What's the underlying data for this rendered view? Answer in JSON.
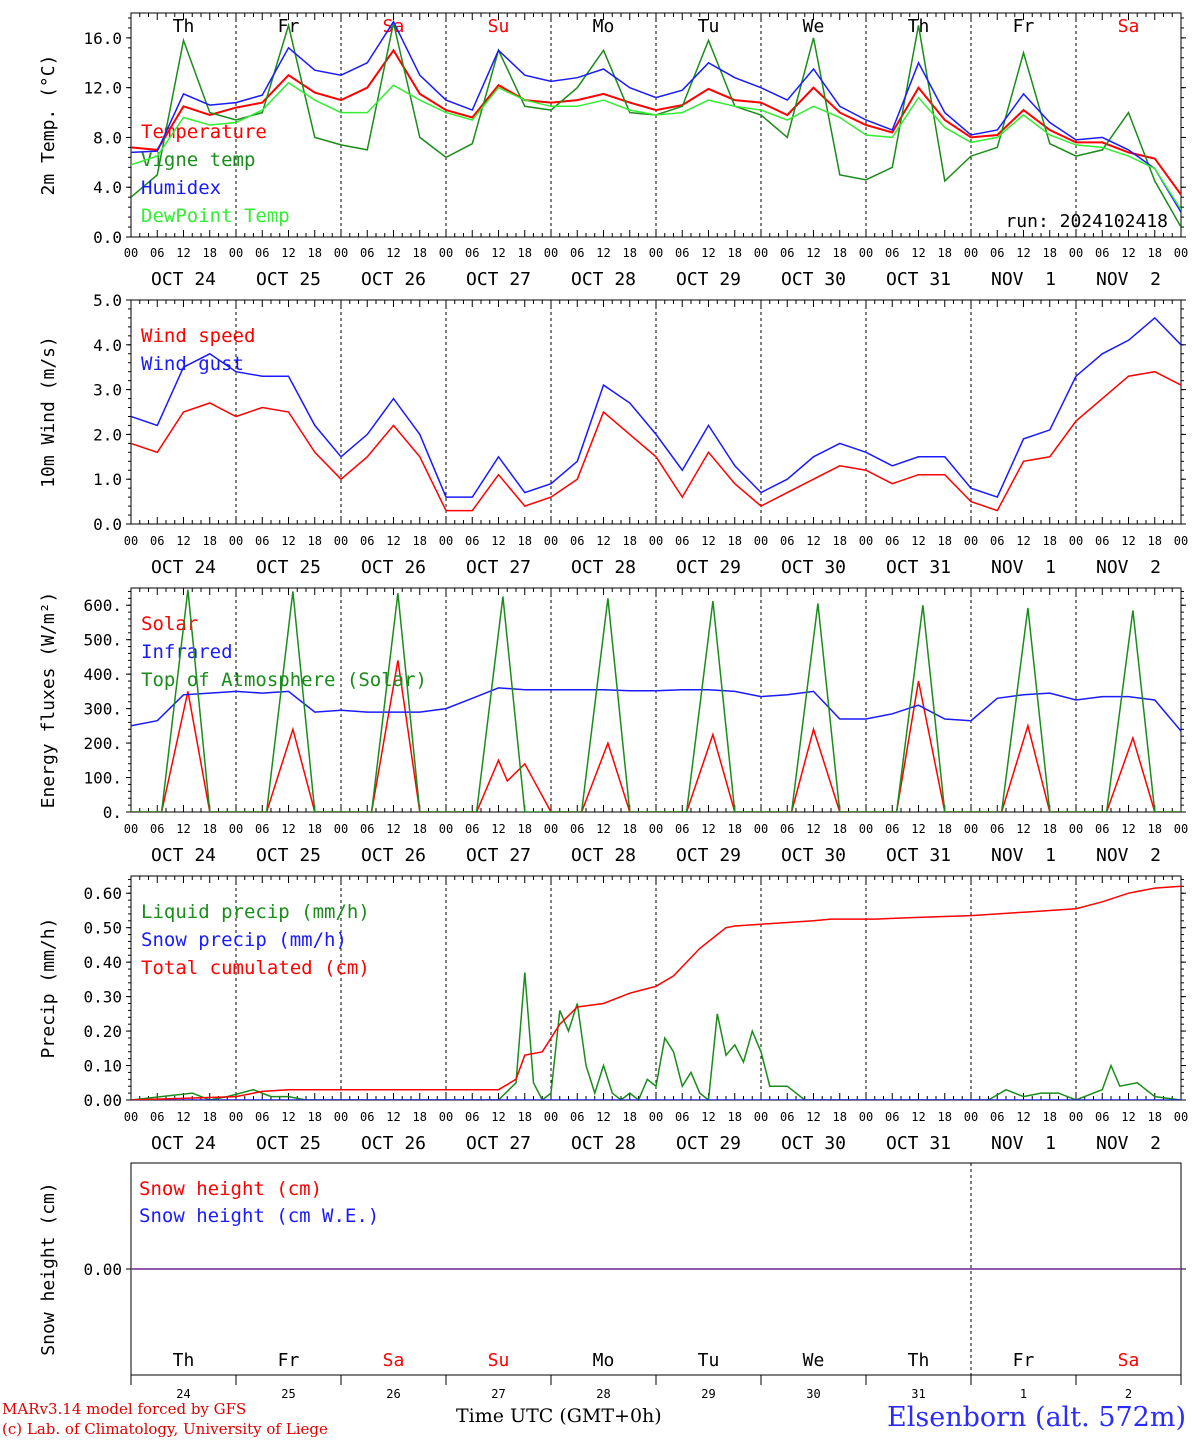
{
  "footer": {
    "model": "MARv3.14 model forced by GFS",
    "credit": "(c) Lab. of Climatology, University of Liege",
    "xtitle": "Time UTC (GMT+0h)",
    "station": "Elsenborn (alt. 572m)"
  },
  "weekdays": [
    "Th",
    "Fr",
    "Sa",
    "Su",
    "Mo",
    "Tu",
    "We",
    "Th",
    "Fr",
    "Sa"
  ],
  "weekend_days": [
    "Sa",
    "Su"
  ],
  "dates": [
    "OCT 24",
    "OCT 25",
    "OCT 26",
    "OCT 27",
    "OCT 28",
    "OCT 29",
    "OCT 30",
    "OCT 31",
    "NOV  1",
    "NOV  2"
  ],
  "bottom_day_numbers": [
    "24",
    "25",
    "26",
    "27",
    "28",
    "29",
    "30",
    "31",
    "1",
    "2"
  ],
  "hour_labels": [
    "00",
    "06",
    "12",
    "18"
  ],
  "colors": {
    "red": "#ff0000",
    "green": "#1a8c1a",
    "blue": "#1a1aff",
    "lightgreen": "#33ee33",
    "purple": "#8040a0"
  },
  "chart_data": [
    {
      "type": "line",
      "ylabel": "2m Temp. (°C)",
      "ylim": [
        0,
        18
      ],
      "yticks": [
        "0.0",
        "4.0",
        "8.0",
        "12.0",
        "16.0"
      ],
      "annotation": "run: 2024102418",
      "x_units": "hours since 2024-10-24 00 UTC (tick labels printed as 00 06 12 18 per day)",
      "x": [
        0,
        6,
        12,
        18,
        24,
        30,
        36,
        42,
        48,
        54,
        60,
        66,
        72,
        78,
        84,
        90,
        96,
        102,
        108,
        114,
        120,
        126,
        132,
        138,
        144,
        150,
        156,
        162,
        168,
        174,
        180,
        186,
        192,
        198,
        204,
        210,
        216,
        222,
        228,
        234,
        240
      ],
      "series": [
        {
          "name": "Temperature",
          "color": "red",
          "values": [
            7.2,
            7.0,
            10.5,
            9.8,
            10.4,
            10.8,
            13.0,
            11.6,
            11.0,
            12.0,
            15.0,
            11.5,
            10.2,
            9.6,
            12.2,
            11.0,
            10.8,
            11.0,
            11.5,
            10.8,
            10.2,
            10.6,
            11.9,
            11.0,
            10.8,
            9.8,
            12.0,
            10.0,
            9.0,
            8.4,
            12.0,
            9.4,
            8.0,
            8.2,
            10.2,
            8.6,
            7.6,
            7.6,
            6.8,
            6.3,
            3.4
          ]
        },
        {
          "name": "Vigne temp",
          "color": "green",
          "values": [
            3.2,
            5.0,
            15.8,
            10.0,
            9.4,
            10.0,
            17.0,
            8.0,
            7.4,
            7.0,
            17.2,
            8.0,
            6.4,
            7.5,
            15.0,
            10.5,
            10.2,
            12.0,
            15.0,
            10.0,
            9.8,
            10.5,
            15.8,
            10.5,
            9.8,
            8.0,
            16.0,
            5.0,
            4.6,
            5.6,
            17.0,
            4.5,
            6.5,
            7.2,
            14.8,
            7.5,
            6.5,
            7.0,
            10.0,
            4.5,
            0.8
          ]
        },
        {
          "name": "Humidex",
          "color": "blue",
          "values": [
            6.8,
            6.9,
            11.5,
            10.6,
            10.8,
            11.4,
            15.2,
            13.4,
            13.0,
            14.0,
            17.3,
            13.0,
            11.0,
            10.2,
            15.0,
            13.0,
            12.5,
            12.8,
            13.5,
            12.0,
            11.2,
            11.8,
            14.0,
            12.8,
            12.0,
            11.0,
            13.5,
            10.5,
            9.4,
            8.6,
            14.0,
            10.0,
            8.2,
            8.6,
            11.5,
            9.2,
            7.8,
            8.0,
            7.0,
            5.5,
            2.0
          ]
        },
        {
          "name": "DewPoint Temp",
          "color": "lightgreen",
          "values": [
            5.8,
            6.5,
            9.6,
            9.0,
            9.2,
            10.2,
            12.4,
            11.0,
            10.0,
            10.0,
            12.2,
            11.0,
            10.0,
            9.4,
            12.0,
            11.0,
            10.5,
            10.5,
            11.0,
            10.2,
            9.8,
            10.0,
            11.0,
            10.5,
            10.2,
            9.4,
            10.5,
            9.6,
            8.2,
            8.0,
            11.2,
            8.8,
            7.6,
            8.0,
            9.8,
            8.2,
            7.4,
            7.2,
            6.5,
            5.5,
            2.2
          ]
        }
      ]
    },
    {
      "type": "line",
      "ylabel": "10m Wind (m/s)",
      "ylim": [
        0,
        5
      ],
      "yticks": [
        "0.0",
        "1.0",
        "2.0",
        "3.0",
        "4.0",
        "5.0"
      ],
      "x": [
        0,
        6,
        12,
        18,
        24,
        30,
        36,
        42,
        48,
        54,
        60,
        66,
        72,
        78,
        84,
        90,
        96,
        102,
        108,
        114,
        120,
        126,
        132,
        138,
        144,
        150,
        156,
        162,
        168,
        174,
        180,
        186,
        192,
        198,
        204,
        210,
        216,
        222,
        228,
        234,
        240
      ],
      "series": [
        {
          "name": "Wind speed",
          "color": "red",
          "values": [
            1.8,
            1.6,
            2.5,
            2.7,
            2.4,
            2.6,
            2.5,
            1.6,
            1.0,
            1.5,
            2.2,
            1.5,
            0.3,
            0.3,
            1.1,
            0.4,
            0.6,
            1.0,
            2.5,
            2.0,
            1.5,
            0.6,
            1.6,
            0.9,
            0.4,
            0.7,
            1.0,
            1.3,
            1.2,
            0.9,
            1.1,
            1.1,
            0.5,
            0.3,
            1.4,
            1.5,
            2.3,
            2.8,
            3.3,
            3.4,
            3.1
          ]
        },
        {
          "name": "Wind gust",
          "color": "blue",
          "values": [
            2.4,
            2.2,
            3.5,
            3.8,
            3.4,
            3.3,
            3.3,
            2.2,
            1.5,
            2.0,
            2.8,
            2.0,
            0.6,
            0.6,
            1.5,
            0.7,
            0.9,
            1.4,
            3.1,
            2.7,
            2.0,
            1.2,
            2.2,
            1.3,
            0.7,
            1.0,
            1.5,
            1.8,
            1.6,
            1.3,
            1.5,
            1.5,
            0.8,
            0.6,
            1.9,
            2.1,
            3.3,
            3.8,
            4.1,
            4.6,
            4.0
          ]
        }
      ]
    },
    {
      "type": "line",
      "ylabel": "Energy fluxes (W/m²)",
      "ylim": [
        0,
        650
      ],
      "yticks": [
        "0.",
        "100.",
        "200.",
        "300.",
        "400.",
        "500.",
        "600."
      ],
      "x_units": "hours since 2024-10-24 00 UTC",
      "series": [
        {
          "name": "Solar",
          "color": "red",
          "x": [
            0,
            7,
            13,
            18,
            24,
            31,
            37,
            42,
            48,
            55,
            61,
            66,
            72,
            79,
            84,
            86,
            90,
            96,
            103,
            109,
            114,
            120,
            127,
            133,
            138,
            144,
            151,
            156,
            162,
            168,
            175,
            180,
            186,
            192,
            199,
            205,
            210,
            216,
            223,
            229,
            234,
            240
          ],
          "values": [
            0,
            0,
            350,
            0,
            0,
            0,
            240,
            0,
            0,
            0,
            440,
            0,
            0,
            0,
            150,
            90,
            140,
            0,
            0,
            200,
            0,
            0,
            0,
            225,
            0,
            0,
            0,
            240,
            0,
            0,
            0,
            380,
            0,
            0,
            0,
            250,
            0,
            0,
            0,
            215,
            0,
            0
          ]
        },
        {
          "name": "Infrared",
          "color": "blue",
          "x": [
            0,
            6,
            12,
            18,
            24,
            30,
            36,
            42,
            48,
            54,
            60,
            66,
            72,
            78,
            84,
            90,
            96,
            102,
            108,
            114,
            120,
            126,
            132,
            138,
            144,
            150,
            156,
            162,
            168,
            174,
            180,
            186,
            192,
            198,
            204,
            210,
            216,
            222,
            228,
            234,
            240
          ],
          "values": [
            250,
            265,
            340,
            345,
            350,
            345,
            350,
            290,
            295,
            290,
            290,
            290,
            300,
            330,
            360,
            355,
            355,
            355,
            355,
            352,
            352,
            355,
            355,
            350,
            335,
            340,
            350,
            270,
            270,
            285,
            310,
            270,
            265,
            330,
            340,
            345,
            325,
            335,
            335,
            325,
            235
          ]
        },
        {
          "name": "Top of Atmosphere (Solar)",
          "color": "green",
          "x": [
            0,
            7,
            13,
            18,
            24,
            31,
            37,
            42,
            48,
            55,
            61,
            66,
            72,
            79,
            85,
            90,
            96,
            103,
            109,
            114,
            120,
            127,
            133,
            138,
            144,
            151,
            157,
            162,
            168,
            175,
            181,
            186,
            192,
            199,
            205,
            210,
            216,
            223,
            229,
            234,
            240
          ],
          "values": [
            0,
            0,
            645,
            0,
            0,
            0,
            640,
            0,
            0,
            0,
            635,
            0,
            0,
            0,
            625,
            0,
            0,
            0,
            620,
            0,
            0,
            0,
            612,
            0,
            0,
            0,
            605,
            0,
            0,
            0,
            600,
            0,
            0,
            0,
            592,
            0,
            0,
            0,
            585,
            0,
            0
          ]
        }
      ]
    },
    {
      "type": "line",
      "ylabel": "Precip (mm/h)",
      "ylim": [
        0,
        0.65
      ],
      "yticks": [
        "0.00",
        "0.10",
        "0.20",
        "0.30",
        "0.40",
        "0.50",
        "0.60"
      ],
      "x_units": "hours since 2024-10-24 00 UTC",
      "series": [
        {
          "name": "Liquid precip (mm/h)",
          "color": "green",
          "x": [
            0,
            14,
            18,
            22,
            28,
            32,
            36,
            40,
            84,
            88,
            90,
            92,
            94,
            96,
            98,
            100,
            102,
            104,
            106,
            108,
            110,
            112,
            114,
            116,
            118,
            120,
            122,
            124,
            126,
            128,
            130,
            132,
            134,
            136,
            138,
            140,
            142,
            144,
            146,
            150,
            154,
            164,
            184,
            196,
            200,
            204,
            208,
            212,
            216,
            220,
            222,
            224,
            226,
            230,
            234,
            240
          ],
          "values": [
            0,
            0.02,
            0,
            0.01,
            0.03,
            0.01,
            0.01,
            0,
            0,
            0.05,
            0.37,
            0.05,
            0,
            0.02,
            0.26,
            0.2,
            0.28,
            0.1,
            0.02,
            0.1,
            0.02,
            0,
            0.02,
            0,
            0.06,
            0.04,
            0.18,
            0.14,
            0.04,
            0.08,
            0.02,
            0,
            0.25,
            0.13,
            0.16,
            0.11,
            0.2,
            0.14,
            0.04,
            0.04,
            0,
            0,
            0,
            0,
            0.03,
            0.01,
            0.02,
            0.02,
            0,
            0.02,
            0.03,
            0.1,
            0.04,
            0.05,
            0.01,
            0
          ]
        },
        {
          "name": "Snow precip (mm/h)",
          "color": "blue",
          "x": [
            0,
            240
          ],
          "values": [
            0,
            0
          ]
        },
        {
          "name": "Total cumulated (cm)",
          "color": "red",
          "x": [
            0,
            24,
            30,
            36,
            84,
            88,
            90,
            94,
            98,
            102,
            108,
            114,
            120,
            124,
            130,
            136,
            138,
            144,
            150,
            156,
            160,
            170,
            180,
            192,
            204,
            216,
            222,
            228,
            234,
            240
          ],
          "values": [
            0,
            0.01,
            0.025,
            0.03,
            0.03,
            0.06,
            0.13,
            0.14,
            0.22,
            0.27,
            0.28,
            0.31,
            0.33,
            0.36,
            0.44,
            0.5,
            0.505,
            0.51,
            0.515,
            0.52,
            0.525,
            0.525,
            0.53,
            0.535,
            0.545,
            0.555,
            0.575,
            0.6,
            0.615,
            0.62
          ]
        }
      ]
    },
    {
      "type": "line",
      "ylabel": "Snow height (cm)",
      "ylim": [
        -1,
        1
      ],
      "yticks": [
        "0.00"
      ],
      "series": [
        {
          "name": "Snow height (cm)",
          "color": "red",
          "x": [
            0,
            240
          ],
          "values": [
            0,
            0
          ]
        },
        {
          "name": "Snow height (cm W.E.)",
          "color": "blue",
          "x": [
            0,
            240
          ],
          "values": [
            0,
            0
          ]
        }
      ]
    }
  ]
}
